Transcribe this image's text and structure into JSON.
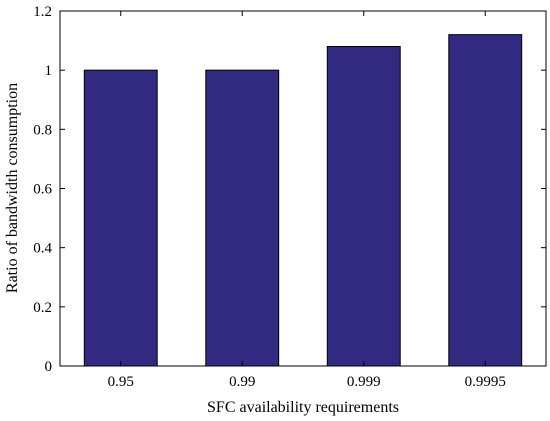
{
  "chart_data": {
    "type": "bar",
    "title": "",
    "categories": [
      "0.95",
      "0.99",
      "0.999",
      "0.9995"
    ],
    "values": [
      1.0,
      1.0,
      1.08,
      1.12
    ],
    "xlabel": "SFC availability requirements",
    "ylabel": "Ratio of bandwidth consumption",
    "ylim": [
      0,
      1.2
    ],
    "yticks": [
      0,
      0.2,
      0.4,
      0.6,
      0.8,
      1,
      1.2
    ],
    "ytick_labels": [
      "0",
      "0.2",
      "0.4",
      "0.6",
      "0.8",
      "1",
      "1.2"
    ],
    "grid": false,
    "legend": "none",
    "bar_color": "#312a80",
    "bar_edge_color": "#000000"
  }
}
